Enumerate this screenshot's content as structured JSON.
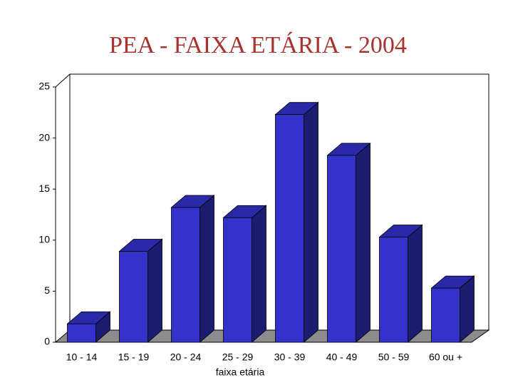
{
  "chart_data": {
    "type": "bar3d",
    "title": "PEA - FAIXA ETÁRIA - 2004",
    "x_label": "faixa etária",
    "categories": [
      "10 - 14",
      "15 - 19",
      "20 - 24",
      "25 - 29",
      "30 - 39",
      "40 - 49",
      "50 - 59",
      "60 ou +"
    ],
    "values": [
      1.8,
      8.9,
      13.2,
      12.2,
      22.3,
      18.3,
      10.3,
      5.3
    ],
    "color": "#3333cc",
    "ylim": [
      0,
      25
    ],
    "yticks": [
      0,
      5,
      10,
      15,
      20,
      25
    ]
  }
}
